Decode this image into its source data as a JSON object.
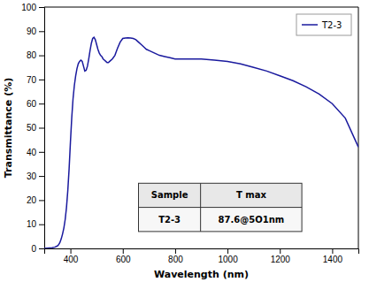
{
  "chart_data": {
    "type": "line",
    "xlabel": "Wavelength (nm)",
    "ylabel": "Transmittance (%)",
    "xlim": [
      300,
      1500
    ],
    "ylim": [
      0,
      100
    ],
    "xticks": [
      400,
      600,
      800,
      1000,
      1200,
      1400
    ],
    "yticks": [
      0,
      10,
      20,
      30,
      40,
      50,
      60,
      70,
      80,
      90,
      100
    ],
    "grid": false,
    "legend": "upper right",
    "x": [
      300,
      310,
      320,
      330,
      340,
      350,
      355,
      360,
      365,
      370,
      375,
      380,
      385,
      390,
      395,
      400,
      405,
      410,
      415,
      420,
      425,
      430,
      435,
      440,
      445,
      450,
      455,
      460,
      465,
      470,
      475,
      480,
      485,
      490,
      495,
      500,
      505,
      510,
      515,
      520,
      525,
      530,
      535,
      540,
      545,
      550,
      560,
      570,
      575,
      580,
      590,
      600,
      610,
      620,
      630,
      640,
      650,
      660,
      670,
      680,
      690,
      700,
      720,
      740,
      760,
      780,
      800,
      820,
      840,
      860,
      880,
      900,
      950,
      1000,
      1050,
      1100,
      1150,
      1200,
      1250,
      1300,
      1350,
      1400,
      1450,
      1500
    ],
    "series": [
      {
        "name": "T2-3",
        "color": "#1a1a9e",
        "values": [
          0,
          0.1,
          0.2,
          0.3,
          0.5,
          1.0,
          1.5,
          2.5,
          4.0,
          6.0,
          8.5,
          12.0,
          17.0,
          24.0,
          33.0,
          44.0,
          54.0,
          62.0,
          67.5,
          71.5,
          74.5,
          76.5,
          77.5,
          78.0,
          77.5,
          75.5,
          73.5,
          73.8,
          75.5,
          78.5,
          82.0,
          85.0,
          87.0,
          87.5,
          86.5,
          84.5,
          82.5,
          81.0,
          80.0,
          79.5,
          78.5,
          78.0,
          77.5,
          77.0,
          77.0,
          77.5,
          78.5,
          80.0,
          81.5,
          83.0,
          85.5,
          87.0,
          87.2,
          87.3,
          87.2,
          87.0,
          86.5,
          85.5,
          84.5,
          83.5,
          82.5,
          82.0,
          81.0,
          80.0,
          79.5,
          79.0,
          78.5,
          78.5,
          78.5,
          78.5,
          78.5,
          78.5,
          78.0,
          77.5,
          76.5,
          75.0,
          73.5,
          71.5,
          69.5,
          67.0,
          64.0,
          60.0,
          54.0,
          42.0
        ]
      }
    ],
    "table": {
      "header": [
        "Sample",
        "T max"
      ],
      "rows": [
        [
          "T2-3",
          "87.6@5O1nm"
        ]
      ]
    }
  }
}
